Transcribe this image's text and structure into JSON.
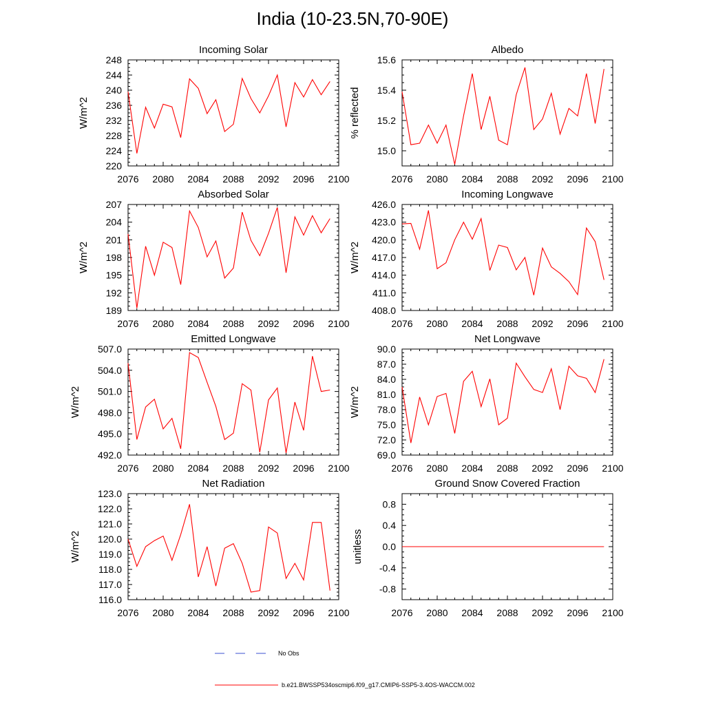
{
  "title": "India (10-23.5N,70-90E)",
  "legend": [
    {
      "label": "No Obs",
      "color": "#3a4fd0",
      "dash": "dashed"
    },
    {
      "label": "b.e21.BWSSP534oscmip6.f09_g17.CMIP6-SSP5-3.4OS-WACCM.002",
      "color": "#ff0000",
      "dash": "solid"
    }
  ],
  "chart_data": [
    {
      "type": "line",
      "title": "Incoming Solar",
      "ylabel": "W/m^2",
      "xlim": [
        2076,
        2100
      ],
      "ylim": [
        220,
        248
      ],
      "xticks": [
        2076,
        2080,
        2084,
        2088,
        2092,
        2096,
        2100
      ],
      "xtick_labels": [
        "2076",
        "2080",
        "2084",
        "2088",
        "2092",
        "2096",
        "2100"
      ],
      "yticks": [
        220,
        224,
        228,
        232,
        236,
        240,
        244,
        248
      ],
      "ytick_labels": [
        "220",
        "224",
        "228",
        "232",
        "236",
        "240",
        "244",
        "248"
      ],
      "x": [
        2076,
        2077,
        2078,
        2079,
        2080,
        2081,
        2082,
        2083,
        2084,
        2085,
        2086,
        2087,
        2088,
        2089,
        2090,
        2091,
        2092,
        2093,
        2094,
        2095,
        2096,
        2097,
        2098,
        2099
      ],
      "series": [
        {
          "name": "b.e21.BWSSP534oscmip6.f09_g17.CMIP6-SSP5-3.4OS-WACCM.002",
          "color": "#ff0000",
          "values": [
            239.6,
            223.3,
            235.5,
            230.0,
            236.3,
            235.6,
            227.5,
            243.0,
            240.5,
            233.8,
            237.5,
            229.1,
            231.0,
            243.1,
            237.8,
            234.0,
            238.5,
            244.0,
            230.3,
            242.0,
            238.2,
            242.8,
            238.8,
            242.3
          ]
        }
      ]
    },
    {
      "type": "line",
      "title": "Albedo",
      "ylabel": "% reflected",
      "xlim": [
        2076,
        2100
      ],
      "ylim": [
        14.9,
        15.6
      ],
      "xticks": [
        2076,
        2080,
        2084,
        2088,
        2092,
        2096,
        2100
      ],
      "xtick_labels": [
        "2076",
        "2080",
        "2084",
        "2088",
        "2092",
        "2096",
        "2100"
      ],
      "yticks": [
        15.0,
        15.2,
        15.4,
        15.6
      ],
      "ytick_labels": [
        "15.0",
        "15.2",
        "15.4",
        "15.6"
      ],
      "x": [
        2076,
        2077,
        2078,
        2079,
        2080,
        2081,
        2082,
        2083,
        2084,
        2085,
        2086,
        2087,
        2088,
        2089,
        2090,
        2091,
        2092,
        2093,
        2094,
        2095,
        2096,
        2097,
        2098,
        2099
      ],
      "series": [
        {
          "name": "b.e21.BWSSP534oscmip6.f09_g17.CMIP6-SSP5-3.4OS-WACCM.002",
          "color": "#ff0000",
          "values": [
            15.39,
            15.04,
            15.05,
            15.17,
            15.05,
            15.17,
            14.91,
            15.23,
            15.51,
            15.14,
            15.36,
            15.07,
            15.04,
            15.37,
            15.55,
            15.14,
            15.21,
            15.38,
            15.11,
            15.28,
            15.23,
            15.51,
            15.18,
            15.54
          ]
        }
      ]
    },
    {
      "type": "line",
      "title": "Absorbed Solar",
      "ylabel": "W/m^2",
      "xlim": [
        2076,
        2100
      ],
      "ylim": [
        189,
        207
      ],
      "xticks": [
        2076,
        2080,
        2084,
        2088,
        2092,
        2096,
        2100
      ],
      "xtick_labels": [
        "2076",
        "2080",
        "2084",
        "2088",
        "2092",
        "2096",
        "2100"
      ],
      "yticks": [
        189,
        192,
        195,
        198,
        201,
        204,
        207
      ],
      "ytick_labels": [
        "189",
        "192",
        "195",
        "198",
        "201",
        "204",
        "207"
      ],
      "x": [
        2076,
        2077,
        2078,
        2079,
        2080,
        2081,
        2082,
        2083,
        2084,
        2085,
        2086,
        2087,
        2088,
        2089,
        2090,
        2091,
        2092,
        2093,
        2094,
        2095,
        2096,
        2097,
        2098,
        2099
      ],
      "series": [
        {
          "name": "b.e21.BWSSP534oscmip6.f09_g17.CMIP6-SSP5-3.4OS-WACCM.002",
          "color": "#ff0000",
          "values": [
            202.0,
            189.4,
            199.9,
            195.0,
            200.6,
            199.7,
            193.4,
            205.9,
            203.1,
            198.1,
            200.8,
            194.5,
            196.2,
            205.7,
            200.9,
            198.3,
            202.1,
            206.5,
            195.4,
            204.9,
            201.8,
            205.1,
            202.2,
            204.6
          ]
        }
      ]
    },
    {
      "type": "line",
      "title": "Incoming Longwave",
      "ylabel": "W/m^2",
      "xlim": [
        2076,
        2100
      ],
      "ylim": [
        408,
        426
      ],
      "xticks": [
        2076,
        2080,
        2084,
        2088,
        2092,
        2096,
        2100
      ],
      "xtick_labels": [
        "2076",
        "2080",
        "2084",
        "2088",
        "2092",
        "2096",
        "2100"
      ],
      "yticks": [
        408,
        411,
        414,
        417,
        420,
        423,
        426
      ],
      "ytick_labels": [
        "408.0",
        "411.0",
        "414.0",
        "417.0",
        "420.0",
        "423.0",
        "426.0"
      ],
      "x": [
        2076,
        2077,
        2078,
        2079,
        2080,
        2081,
        2082,
        2083,
        2084,
        2085,
        2086,
        2087,
        2088,
        2089,
        2090,
        2091,
        2092,
        2093,
        2094,
        2095,
        2096,
        2097,
        2098,
        2099
      ],
      "series": [
        {
          "name": "b.e21.BWSSP534oscmip6.f09_g17.CMIP6-SSP5-3.4OS-WACCM.002",
          "color": "#ff0000",
          "values": [
            422.7,
            422.8,
            418.4,
            425.0,
            415.1,
            416.1,
            420.0,
            423.0,
            420.1,
            423.6,
            414.8,
            419.1,
            418.7,
            414.9,
            417.0,
            410.6,
            418.6,
            415.4,
            414.3,
            412.9,
            410.7,
            422.0,
            419.7,
            413.2
          ]
        }
      ]
    },
    {
      "type": "line",
      "title": "Emitted Longwave",
      "ylabel": "W/m^2",
      "xlim": [
        2076,
        2100
      ],
      "ylim": [
        492,
        507
      ],
      "xticks": [
        2076,
        2080,
        2084,
        2088,
        2092,
        2096,
        2100
      ],
      "xtick_labels": [
        "2076",
        "2080",
        "2084",
        "2088",
        "2092",
        "2096",
        "2100"
      ],
      "yticks": [
        492,
        495,
        498,
        501,
        504,
        507
      ],
      "ytick_labels": [
        "492.0",
        "495.0",
        "498.0",
        "501.0",
        "504.0",
        "507.0"
      ],
      "x": [
        2076,
        2077,
        2078,
        2079,
        2080,
        2081,
        2082,
        2083,
        2084,
        2085,
        2086,
        2087,
        2088,
        2089,
        2090,
        2091,
        2092,
        2093,
        2094,
        2095,
        2096,
        2097,
        2098,
        2099
      ],
      "series": [
        {
          "name": "b.e21.BWSSP534oscmip6.f09_g17.CMIP6-SSP5-3.4OS-WACCM.002",
          "color": "#ff0000",
          "values": [
            505.0,
            494.2,
            498.8,
            499.9,
            495.7,
            497.2,
            492.9,
            506.5,
            505.8,
            502.3,
            498.9,
            494.2,
            495.1,
            502.1,
            501.2,
            492.4,
            499.8,
            501.5,
            492.3,
            499.5,
            495.5,
            506.0,
            501.0,
            501.2
          ]
        }
      ]
    },
    {
      "type": "line",
      "title": "Net Longwave",
      "ylabel": "W/m^2",
      "xlim": [
        2076,
        2100
      ],
      "ylim": [
        69,
        90
      ],
      "xticks": [
        2076,
        2080,
        2084,
        2088,
        2092,
        2096,
        2100
      ],
      "xtick_labels": [
        "2076",
        "2080",
        "2084",
        "2088",
        "2092",
        "2096",
        "2100"
      ],
      "yticks": [
        69,
        72,
        75,
        78,
        81,
        84,
        87,
        90
      ],
      "ytick_labels": [
        "69.0",
        "72.0",
        "75.0",
        "78.0",
        "81.0",
        "84.0",
        "87.0",
        "90.0"
      ],
      "x": [
        2076,
        2077,
        2078,
        2079,
        2080,
        2081,
        2082,
        2083,
        2084,
        2085,
        2086,
        2087,
        2088,
        2089,
        2090,
        2091,
        2092,
        2093,
        2094,
        2095,
        2096,
        2097,
        2098,
        2099
      ],
      "series": [
        {
          "name": "b.e21.BWSSP534oscmip6.f09_g17.CMIP6-SSP5-3.4OS-WACCM.002",
          "color": "#ff0000",
          "values": [
            82.5,
            71.4,
            80.5,
            75.0,
            80.6,
            81.2,
            73.3,
            83.6,
            85.6,
            78.6,
            84.1,
            75.0,
            76.3,
            87.2,
            84.5,
            82.0,
            81.4,
            86.1,
            78.0,
            86.6,
            84.7,
            84.2,
            81.4,
            88.0
          ]
        }
      ]
    },
    {
      "type": "line",
      "title": "Net Radiation",
      "ylabel": "W/m^2",
      "xlim": [
        2076,
        2100
      ],
      "ylim": [
        116,
        123
      ],
      "xticks": [
        2076,
        2080,
        2084,
        2088,
        2092,
        2096,
        2100
      ],
      "xtick_labels": [
        "2076",
        "2080",
        "2084",
        "2088",
        "2092",
        "2096",
        "2100"
      ],
      "yticks": [
        116,
        117,
        118,
        119,
        120,
        121,
        122,
        123
      ],
      "ytick_labels": [
        "116.0",
        "117.0",
        "118.0",
        "119.0",
        "120.0",
        "121.0",
        "122.0",
        "123.0"
      ],
      "x": [
        2076,
        2077,
        2078,
        2079,
        2080,
        2081,
        2082,
        2083,
        2084,
        2085,
        2086,
        2087,
        2088,
        2089,
        2090,
        2091,
        2092,
        2093,
        2094,
        2095,
        2096,
        2097,
        2098,
        2099
      ],
      "series": [
        {
          "name": "b.e21.BWSSP534oscmip6.f09_g17.CMIP6-SSP5-3.4OS-WACCM.002",
          "color": "#ff0000",
          "values": [
            120.0,
            118.2,
            119.5,
            119.9,
            120.2,
            118.6,
            120.3,
            122.3,
            117.5,
            119.5,
            116.9,
            119.4,
            119.7,
            118.4,
            116.5,
            116.6,
            120.8,
            120.4,
            117.4,
            118.4,
            117.3,
            121.1,
            121.1,
            116.6
          ]
        }
      ]
    },
    {
      "type": "line",
      "title": "Ground Snow Covered Fraction",
      "ylabel": "unitless",
      "xlim": [
        2076,
        2100
      ],
      "ylim": [
        -1,
        1
      ],
      "xticks": [
        2076,
        2080,
        2084,
        2088,
        2092,
        2096,
        2100
      ],
      "xtick_labels": [
        "2076",
        "2080",
        "2084",
        "2088",
        "2092",
        "2096",
        "2100"
      ],
      "yticks": [
        -0.8,
        -0.4,
        0.0,
        0.4,
        0.8
      ],
      "ytick_labels": [
        "-0.8",
        "-0.4",
        "0.0",
        "0.4",
        "0.8"
      ],
      "x": [
        2076,
        2077,
        2078,
        2079,
        2080,
        2081,
        2082,
        2083,
        2084,
        2085,
        2086,
        2087,
        2088,
        2089,
        2090,
        2091,
        2092,
        2093,
        2094,
        2095,
        2096,
        2097,
        2098,
        2099
      ],
      "series": [
        {
          "name": "b.e21.BWSSP534oscmip6.f09_g17.CMIP6-SSP5-3.4OS-WACCM.002",
          "color": "#ff0000",
          "values": [
            0,
            0,
            0,
            0,
            0,
            0,
            0,
            0,
            0,
            0,
            0,
            0,
            0,
            0,
            0,
            0,
            0,
            0,
            0,
            0,
            0,
            0,
            0,
            0
          ]
        }
      ]
    }
  ]
}
